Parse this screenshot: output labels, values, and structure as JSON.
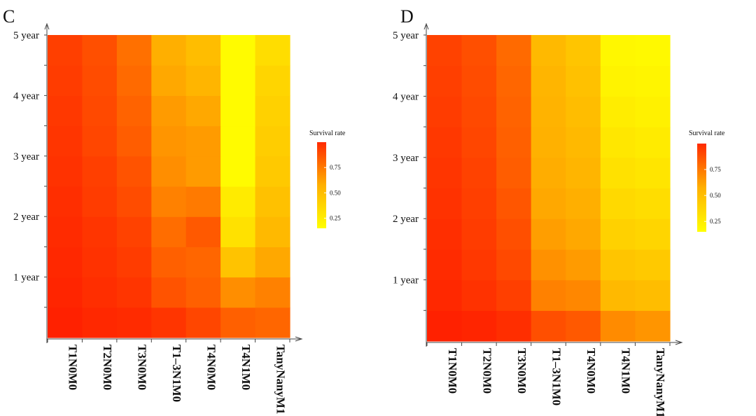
{
  "chart_data": [
    {
      "panel": "C",
      "type": "heatmap",
      "title": "",
      "xlabel": "",
      "ylabel": "",
      "categories": [
        "T1N0M0",
        "T2N0M0",
        "T3N0M0",
        "T1–3N1M0",
        "T4N0M0",
        "T4N1M0",
        "TanyNanyM1"
      ],
      "y_labels": [
        "1 year",
        "2 year",
        "3 year",
        "4 year",
        "5 year"
      ],
      "y_rows": 10,
      "y_label_rows": [
        2,
        4,
        6,
        8,
        10
      ],
      "legend": {
        "title": "Survival rate",
        "ticks": [
          0.25,
          0.5,
          0.75
        ],
        "range": [
          0.15,
          1.0
        ]
      },
      "values": [
        [
          0.99,
          0.97,
          0.96,
          0.93,
          0.88,
          0.8,
          0.78
        ],
        [
          0.98,
          0.95,
          0.93,
          0.84,
          0.8,
          0.66,
          0.7
        ],
        [
          0.97,
          0.94,
          0.91,
          0.8,
          0.78,
          0.45,
          0.58
        ],
        [
          0.96,
          0.93,
          0.89,
          0.76,
          0.82,
          0.3,
          0.5
        ],
        [
          0.95,
          0.91,
          0.86,
          0.7,
          0.72,
          0.25,
          0.46
        ],
        [
          0.94,
          0.9,
          0.84,
          0.66,
          0.62,
          0.17,
          0.42
        ],
        [
          0.93,
          0.88,
          0.81,
          0.64,
          0.62,
          0.17,
          0.4
        ],
        [
          0.92,
          0.87,
          0.79,
          0.62,
          0.58,
          0.17,
          0.38
        ],
        [
          0.91,
          0.86,
          0.77,
          0.58,
          0.52,
          0.17,
          0.36
        ],
        [
          0.9,
          0.85,
          0.75,
          0.55,
          0.48,
          0.17,
          0.32
        ]
      ]
    },
    {
      "panel": "D",
      "type": "heatmap",
      "title": "",
      "xlabel": "",
      "ylabel": "",
      "categories": [
        "T1N0M0",
        "T2N0M0",
        "T3N0M0",
        "T1–3N1M0",
        "T4N0M0",
        "T4N1M0",
        "TanyNanyM1"
      ],
      "y_labels": [
        "1 year",
        "2 year",
        "3 year",
        "4 year",
        "5 year"
      ],
      "y_rows": 10,
      "y_label_rows": [
        2,
        4,
        6,
        8,
        10
      ],
      "legend": {
        "title": "Survival rate",
        "ticks": [
          0.25,
          0.5,
          0.75
        ],
        "range": [
          0.15,
          1.0
        ]
      },
      "values": [
        [
          0.99,
          0.98,
          0.95,
          0.85,
          0.82,
          0.67,
          0.64
        ],
        [
          0.97,
          0.94,
          0.9,
          0.7,
          0.68,
          0.5,
          0.48
        ],
        [
          0.96,
          0.92,
          0.87,
          0.65,
          0.62,
          0.44,
          0.42
        ],
        [
          0.95,
          0.91,
          0.85,
          0.61,
          0.58,
          0.38,
          0.36
        ],
        [
          0.94,
          0.9,
          0.83,
          0.58,
          0.55,
          0.34,
          0.32
        ],
        [
          0.93,
          0.89,
          0.81,
          0.56,
          0.52,
          0.3,
          0.28
        ],
        [
          0.92,
          0.88,
          0.8,
          0.54,
          0.5,
          0.27,
          0.25
        ],
        [
          0.91,
          0.87,
          0.79,
          0.53,
          0.48,
          0.24,
          0.22
        ],
        [
          0.9,
          0.86,
          0.78,
          0.52,
          0.46,
          0.21,
          0.2
        ],
        [
          0.89,
          0.85,
          0.77,
          0.5,
          0.44,
          0.19,
          0.18
        ]
      ]
    }
  ]
}
